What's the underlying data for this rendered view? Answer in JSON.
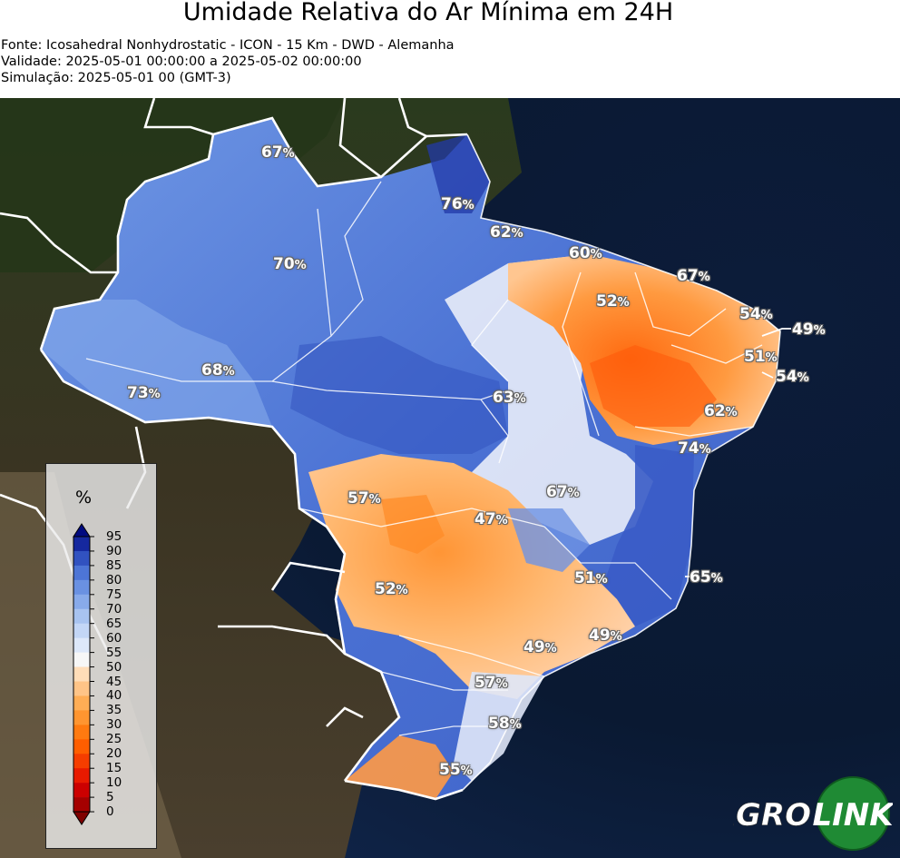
{
  "header": {
    "title": "Umidade Relativa do Ar Mínima em 24H",
    "source": "Fonte: Icosahedral Nonhydrostatic - ICON - 15 Km - DWD - Alemanha",
    "validity": "Validade: 2025-05-01 00:00:00 a 2025-05-02 00:00:00",
    "simulation": "Simulação: 2025-05-01 00 (GMT-3)"
  },
  "map_labels": [
    {
      "value": "67",
      "unit": "%"
    },
    {
      "value": "76",
      "unit": "%"
    },
    {
      "value": "62",
      "unit": "%"
    },
    {
      "value": "60",
      "unit": "%"
    },
    {
      "value": "67",
      "unit": "%"
    },
    {
      "value": "70",
      "unit": "%"
    },
    {
      "value": "52",
      "unit": "%"
    },
    {
      "value": "54",
      "unit": "%"
    },
    {
      "value": "49",
      "unit": "%"
    },
    {
      "value": "51",
      "unit": "%"
    },
    {
      "value": "54",
      "unit": "%"
    },
    {
      "value": "68",
      "unit": "%"
    },
    {
      "value": "73",
      "unit": "%"
    },
    {
      "value": "63",
      "unit": "%"
    },
    {
      "value": "62",
      "unit": "%"
    },
    {
      "value": "74",
      "unit": "%"
    },
    {
      "value": "57",
      "unit": "%"
    },
    {
      "value": "67",
      "unit": "%"
    },
    {
      "value": "47",
      "unit": "%"
    },
    {
      "value": "52",
      "unit": "%"
    },
    {
      "value": "51",
      "unit": "%"
    },
    {
      "value": "65",
      "unit": "%"
    },
    {
      "value": "49",
      "unit": "%"
    },
    {
      "value": "49",
      "unit": "%"
    },
    {
      "value": "57",
      "unit": "%"
    },
    {
      "value": "58",
      "unit": "%"
    },
    {
      "value": "55",
      "unit": "%"
    }
  ],
  "legend": {
    "unit": "%",
    "ticks": [
      "0",
      "5",
      "10",
      "15",
      "20",
      "25",
      "30",
      "35",
      "40",
      "45",
      "50",
      "55",
      "60",
      "65",
      "70",
      "75",
      "80",
      "85",
      "90",
      "95"
    ],
    "colors": [
      "#7f0000",
      "#a50000",
      "#cc0000",
      "#e81a00",
      "#f53d00",
      "#ff5e00",
      "#ff7a10",
      "#ff9530",
      "#ffad55",
      "#ffc487",
      "#ffddb8",
      "#f7f7f7",
      "#dde8fa",
      "#c3d6f6",
      "#a8c3f0",
      "#88aaea",
      "#6a91e2",
      "#4d75d6",
      "#3152c0",
      "#15289e",
      "#000a80"
    ]
  },
  "logo": {
    "text_left": "AGRO",
    "text_right": "LINK",
    "colors": {
      "green": "#2a9d3c",
      "dark_green": "#136b25"
    }
  }
}
